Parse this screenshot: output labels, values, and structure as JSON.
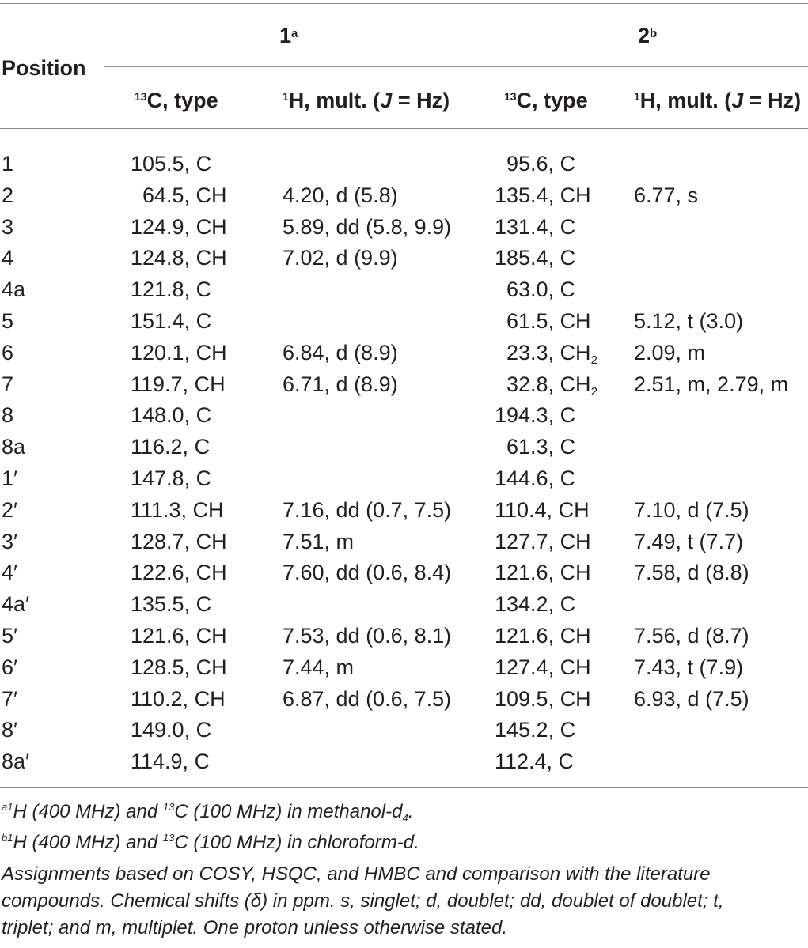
{
  "table": {
    "header": {
      "position": "Position",
      "compound1": {
        "label": "1",
        "mark": "a"
      },
      "compound2": {
        "label": "2",
        "mark": "b"
      },
      "c13_prefix": "13",
      "c13_label": "C, type",
      "h1_prefix": "1",
      "h1_label_start": "H, mult. (",
      "j_letter": "J",
      "h1_label_end": " = Hz)"
    },
    "rows": [
      {
        "position": "1",
        "c1": "105.5, C",
        "h1": "",
        "c2": "95.6, C",
        "h2": ""
      },
      {
        "position": "2",
        "c1": "64.5, CH",
        "h1": "4.20, d (5.8)",
        "c2": "135.4, CH",
        "h2": "6.77, s"
      },
      {
        "position": "3",
        "c1": "124.9, CH",
        "h1": "5.89, dd (5.8, 9.9)",
        "c2": "131.4, C",
        "h2": ""
      },
      {
        "position": "4",
        "c1": "124.8, CH",
        "h1": "7.02, d (9.9)",
        "c2": "185.4, C",
        "h2": ""
      },
      {
        "position": "4a",
        "c1": "121.8, C",
        "h1": "",
        "c2": "63.0, C",
        "h2": ""
      },
      {
        "position": "5",
        "c1": "151.4, C",
        "h1": "",
        "c2": "61.5, CH",
        "h2": "5.12, t (3.0)"
      },
      {
        "position": "6",
        "c1": "120.1, CH",
        "h1": "6.84, d (8.9)",
        "c2": "23.3, CH",
        "c2_sub": "2",
        "h2": "2.09, m"
      },
      {
        "position": "7",
        "c1": "119.7, CH",
        "h1": "6.71, d (8.9)",
        "c2": "32.8, CH",
        "c2_sub": "2",
        "h2": "2.51, m, 2.79, m"
      },
      {
        "position": "8",
        "c1": "148.0, C",
        "h1": "",
        "c2": "194.3, C",
        "h2": ""
      },
      {
        "position": "8a",
        "c1": "116.2, C",
        "h1": "",
        "c2": "61.3, C",
        "h2": ""
      },
      {
        "position": "1′",
        "c1": "147.8, C",
        "h1": "",
        "c2": "144.6, C",
        "h2": ""
      },
      {
        "position": "2′",
        "c1": "111.3, CH",
        "h1": "7.16, dd (0.7, 7.5)",
        "c2": "110.4, CH",
        "h2": "7.10, d (7.5)"
      },
      {
        "position": "3′",
        "c1": "128.7, CH",
        "h1": "7.51, m",
        "c2": "127.7, CH",
        "h2": "7.49, t (7.7)"
      },
      {
        "position": "4′",
        "c1": "122.6, CH",
        "h1": "7.60, dd (0.6, 8.4)",
        "c2": "121.6, CH",
        "h2": "7.58, d (8.8)"
      },
      {
        "position": "4a′",
        "c1": "135.5, C",
        "h1": "",
        "c2": "134.2, C",
        "h2": ""
      },
      {
        "position": "5′",
        "c1": "121.6, CH",
        "h1": "7.53, dd (0.6, 8.1)",
        "c2": "121.6, CH",
        "h2": "7.56, d (8.7)"
      },
      {
        "position": "6′",
        "c1": "128.5, CH",
        "h1": "7.44, m",
        "c2": "127.4, CH",
        "h2": "7.43, t (7.9)"
      },
      {
        "position": "7′",
        "c1": "110.2, CH",
        "h1": "6.87, dd (0.6, 7.5)",
        "c2": "109.5, CH",
        "h2": "6.93, d (7.5)"
      },
      {
        "position": "8′",
        "c1": "149.0, C",
        "h1": "",
        "c2": "145.2, C",
        "h2": ""
      },
      {
        "position": "8a′",
        "c1": "114.9, C",
        "h1": "",
        "c2": "112.4, C",
        "h2": ""
      }
    ]
  },
  "footnotes": {
    "a": {
      "mark": "a",
      "h_sup": "1",
      "h_text": "H (400 MHz) and ",
      "c_sup": "13",
      "c_text": "C (100 MHz) in methanol-d",
      "sub": "4",
      "end": "."
    },
    "b": {
      "mark": "b",
      "h_sup": "1",
      "h_text": "H (400 MHz) and ",
      "c_sup": "13",
      "c_text": "C (100 MHz) in chloroform-d."
    },
    "notes": [
      "Assignments based on COSY, HSQC, and HMBC and comparison with the literature",
      "compounds. Chemical shifts (δ) in ppm. s, singlet; d, doublet; dd, doublet of doublet; t,",
      "triplet; and m, multiplet. One proton unless otherwise stated."
    ]
  }
}
